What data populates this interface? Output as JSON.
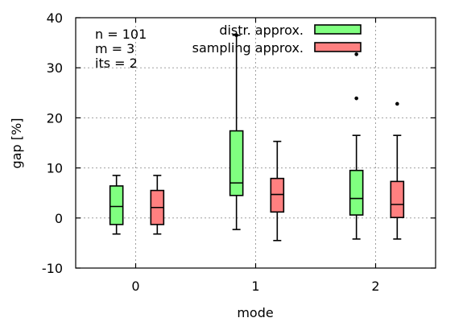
{
  "chart_data": {
    "type": "boxplot",
    "xlabel": "mode",
    "ylabel": "gap [%]",
    "ylim": [
      -10,
      40
    ],
    "yticks": [
      -10,
      0,
      10,
      20,
      30,
      40
    ],
    "xlim": [
      -0.5,
      2.5
    ],
    "categories": [
      "0",
      "1",
      "2"
    ],
    "grid": true,
    "legend_position": "top-right",
    "annotations": [
      "n = 101",
      "m = 3",
      "its = 2"
    ],
    "series": [
      {
        "name": "distr. approx.",
        "color": "#80ff80",
        "boxes": [
          {
            "category": "0",
            "whisker_low": -3.2,
            "q1": -1.3,
            "median": 2.3,
            "q3": 6.4,
            "whisker_high": 8.5,
            "outliers": []
          },
          {
            "category": "1",
            "whisker_low": -2.3,
            "q1": 4.5,
            "median": 7.0,
            "q3": 17.4,
            "whisker_high": 36.5,
            "outliers": [
              36.5
            ]
          },
          {
            "category": "2",
            "whisker_low": -4.2,
            "q1": 0.6,
            "median": 3.9,
            "q3": 9.5,
            "whisker_high": 16.5,
            "outliers": [
              23.9,
              32.7
            ]
          }
        ]
      },
      {
        "name": "sampling approx.",
        "color": "#ff8080",
        "boxes": [
          {
            "category": "0",
            "whisker_low": -3.2,
            "q1": -1.3,
            "median": 2.1,
            "q3": 5.5,
            "whisker_high": 8.5,
            "outliers": []
          },
          {
            "category": "1",
            "whisker_low": -4.5,
            "q1": 1.2,
            "median": 4.7,
            "q3": 7.9,
            "whisker_high": 15.3,
            "outliers": []
          },
          {
            "category": "2",
            "whisker_low": -4.2,
            "q1": 0.1,
            "median": 2.7,
            "q3": 7.3,
            "whisker_high": 16.5,
            "outliers": [
              22.8
            ]
          }
        ]
      }
    ]
  }
}
